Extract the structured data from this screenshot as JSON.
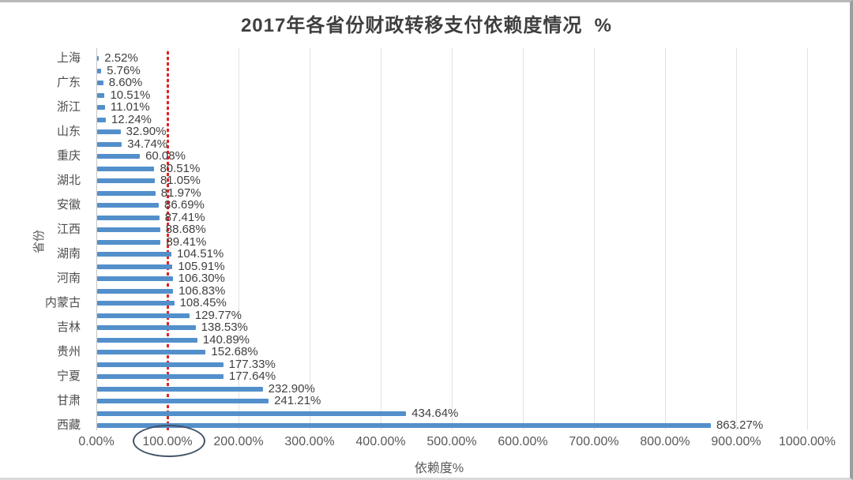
{
  "chart_data": {
    "type": "bar",
    "orientation": "horizontal",
    "title": "2017年各省份财政转移支付依赖度情况  %",
    "xlabel": "依赖度%",
    "ylabel": "省份",
    "xlim": [
      0,
      1000
    ],
    "x_tick_labels": [
      "0.00%",
      "100.00%",
      "200.00%",
      "300.00%",
      "400.00%",
      "500.00%",
      "600.00%",
      "700.00%",
      "800.00%",
      "900.00%",
      "1000.00%"
    ],
    "grid": true,
    "legend": "none",
    "bar_color": "#5390cb",
    "value_label_color": "#3f3f3f",
    "axis_text_color": "#595959",
    "reference_line": {
      "value": 100,
      "color": "#e02424",
      "style": "dotted"
    },
    "annotation_ellipse": {
      "around_tick": "100.00%",
      "color": "#44546a"
    },
    "bars": [
      {
        "label": "上海",
        "value": 2.52,
        "value_label": "2.52%"
      },
      {
        "label": "",
        "value": 5.76,
        "value_label": "5.76%"
      },
      {
        "label": "广东",
        "value": 8.6,
        "value_label": "8.60%"
      },
      {
        "label": "",
        "value": 10.51,
        "value_label": "10.51%"
      },
      {
        "label": "浙江",
        "value": 11.01,
        "value_label": "11.01%"
      },
      {
        "label": "",
        "value": 12.24,
        "value_label": "12.24%"
      },
      {
        "label": "山东",
        "value": 32.9,
        "value_label": "32.90%"
      },
      {
        "label": "",
        "value": 34.74,
        "value_label": "34.74%"
      },
      {
        "label": "重庆",
        "value": 60.08,
        "value_label": "60.08%"
      },
      {
        "label": "",
        "value": 80.51,
        "value_label": "80.51%"
      },
      {
        "label": "湖北",
        "value": 81.05,
        "value_label": "81.05%"
      },
      {
        "label": "",
        "value": 81.97,
        "value_label": "81.97%"
      },
      {
        "label": "安徽",
        "value": 86.69,
        "value_label": "86.69%"
      },
      {
        "label": "",
        "value": 87.41,
        "value_label": "87.41%"
      },
      {
        "label": "江西",
        "value": 88.68,
        "value_label": "88.68%"
      },
      {
        "label": "",
        "value": 89.41,
        "value_label": "89.41%"
      },
      {
        "label": "湖南",
        "value": 104.51,
        "value_label": "104.51%"
      },
      {
        "label": "",
        "value": 105.91,
        "value_label": "105.91%"
      },
      {
        "label": "河南",
        "value": 106.3,
        "value_label": "106.30%"
      },
      {
        "label": "",
        "value": 106.83,
        "value_label": "106.83%"
      },
      {
        "label": "内蒙古",
        "value": 108.45,
        "value_label": "108.45%"
      },
      {
        "label": "",
        "value": 129.77,
        "value_label": "129.77%"
      },
      {
        "label": "吉林",
        "value": 138.53,
        "value_label": "138.53%"
      },
      {
        "label": "",
        "value": 140.89,
        "value_label": "140.89%"
      },
      {
        "label": "贵州",
        "value": 152.68,
        "value_label": "152.68%"
      },
      {
        "label": "",
        "value": 177.33,
        "value_label": "177.33%"
      },
      {
        "label": "宁夏",
        "value": 177.64,
        "value_label": "177.64%"
      },
      {
        "label": "",
        "value": 232.9,
        "value_label": "232.90%"
      },
      {
        "label": "甘肃",
        "value": 241.21,
        "value_label": "241.21%"
      },
      {
        "label": "",
        "value": 434.64,
        "value_label": "434.64%"
      },
      {
        "label": "西藏",
        "value": 863.27,
        "value_label": "863.27%"
      }
    ]
  }
}
